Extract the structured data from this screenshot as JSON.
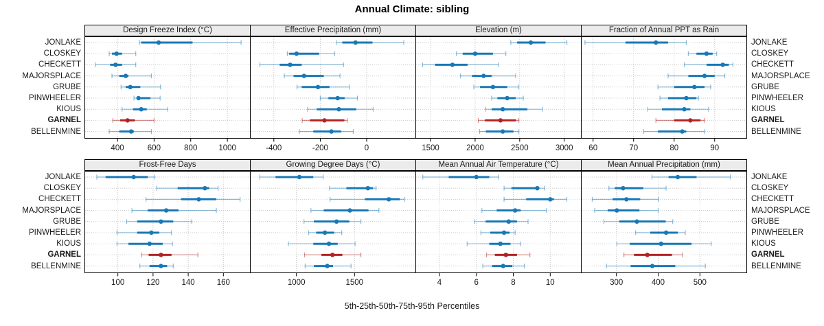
{
  "chart_data": {
    "type": "scatter",
    "subtype": "trellis-percentile-dot-whisker",
    "title": "Annual Climate: sibling",
    "caption": "5th-25th-50th-75th-95th Percentiles",
    "percentiles": [
      "5th",
      "25th",
      "50th",
      "75th",
      "95th"
    ],
    "sites": [
      "JONLAKE",
      "CLOSKEY",
      "CHECKETT",
      "MAJORSPLACE",
      "GRUBE",
      "PINWHEELER",
      "KIOUS",
      "GARNEL",
      "BELLENMINE"
    ],
    "highlight_site": "GARNEL",
    "grid": "dotted",
    "legend": "none",
    "colors": {
      "series": "#1778b7",
      "highlight": "#b22222",
      "strip_bg": "#ebebeb",
      "gridline": "#c9c9c9",
      "border": "#000000",
      "text": "#1a1a1a"
    },
    "panels": [
      {
        "title": "Design Freeze Index (°C)",
        "ticks": [
          400,
          600,
          800,
          1000
        ],
        "xlim": [
          220,
          1127
        ],
        "values": {
          "JONLAKE": [
            520,
            530,
            625,
            810,
            1075
          ],
          "CLOSKEY": [
            355,
            370,
            395,
            425,
            500
          ],
          "CHECKETT": [
            280,
            360,
            390,
            425,
            500
          ],
          "MAJORSPLACE": [
            370,
            410,
            445,
            460,
            585
          ],
          "GRUBE": [
            420,
            445,
            470,
            525,
            635
          ],
          "PINWHEELER": [
            490,
            505,
            515,
            580,
            633
          ],
          "KIOUS": [
            425,
            485,
            530,
            560,
            675
          ],
          "GARNEL": [
            375,
            415,
            455,
            495,
            600
          ],
          "BELLENMINE": [
            355,
            410,
            475,
            490,
            585
          ]
        }
      },
      {
        "title": "Effective Precipitation (mm)",
        "ticks": [
          -400,
          -200,
          0
        ],
        "xlim": [
          -503,
          213
        ],
        "values": {
          "JONLAKE": [
            -130,
            -105,
            -48,
            25,
            160
          ],
          "CLOSKEY": [
            -342,
            -334,
            -302,
            -205,
            -138
          ],
          "CHECKETT": [
            -460,
            -375,
            -330,
            -280,
            -100
          ],
          "MAJORSPLACE": [
            -355,
            -315,
            -270,
            -185,
            -115
          ],
          "GRUBE": [
            -300,
            -280,
            -210,
            -160,
            -75
          ],
          "PINWHEELER": [
            -200,
            -165,
            -125,
            -95,
            -40
          ],
          "KIOUS": [
            -255,
            -215,
            -120,
            -45,
            28
          ],
          "GARNEL": [
            -278,
            -245,
            -182,
            -96,
            -84
          ],
          "BELLENMINE": [
            -290,
            -230,
            -152,
            -110,
            -58
          ]
        }
      },
      {
        "title": "Elevation (m)",
        "ticks": [
          1500,
          2000,
          2500,
          3000
        ],
        "xlim": [
          1330,
          3195
        ],
        "values": {
          "JONLAKE": [
            2400,
            2470,
            2625,
            2790,
            3030
          ],
          "CLOSKEY": [
            1790,
            1860,
            2000,
            2200,
            2345
          ],
          "CHECKETT": [
            1410,
            1550,
            1745,
            1915,
            2265
          ],
          "MAJORSPLACE": [
            1835,
            1965,
            2095,
            2185,
            2455
          ],
          "GRUBE": [
            1985,
            2055,
            2200,
            2360,
            2490
          ],
          "PINWHEELER": [
            2185,
            2250,
            2360,
            2455,
            2540
          ],
          "KIOUS": [
            2115,
            2185,
            2310,
            2585,
            2755
          ],
          "GARNEL": [
            2035,
            2110,
            2285,
            2460,
            2490
          ],
          "BELLENMINE": [
            2050,
            2120,
            2310,
            2430,
            2490
          ]
        }
      },
      {
        "title": "Fraction of Annual PPT as Rain",
        "ticks": [
          60,
          70,
          80,
          90
        ],
        "xlim": [
          57,
          98
        ],
        "values": {
          "JONLAKE": [
            58,
            68,
            75.5,
            78.5,
            83
          ],
          "CLOSKEY": [
            83.5,
            85.5,
            88,
            89.5,
            90.5
          ],
          "CHECKETT": [
            82.5,
            88,
            92,
            93.5,
            94.5
          ],
          "MAJORSPLACE": [
            78.5,
            83.5,
            87.5,
            90,
            92.5
          ],
          "GRUBE": [
            76,
            80,
            85,
            87.5,
            89
          ],
          "PINWHEELER": [
            76.5,
            78.5,
            83,
            85.5,
            86
          ],
          "KIOUS": [
            73.5,
            77,
            82.5,
            84,
            88.5
          ],
          "GARNEL": [
            75.5,
            80,
            84,
            86.5,
            87.5
          ],
          "BELLENMINE": [
            72.5,
            76,
            82,
            83,
            87.5
          ]
        }
      },
      {
        "title": "Frost-Free Days",
        "ticks": [
          100,
          120,
          140,
          160
        ],
        "xlim": [
          81,
          175.5
        ],
        "values": {
          "JONLAKE": [
            88,
            93,
            109,
            117,
            121
          ],
          "CLOSKEY": [
            122,
            134,
            149.5,
            152,
            157
          ],
          "CHECKETT": [
            116,
            136,
            146,
            156,
            169.5
          ],
          "MAJORSPLACE": [
            108,
            117,
            127.5,
            134.5,
            156
          ],
          "GRUBE": [
            105,
            111,
            124.5,
            131.5,
            142
          ],
          "PINWHEELER": [
            99.5,
            111,
            119,
            123.5,
            130.5
          ],
          "KIOUS": [
            99.5,
            106,
            118,
            125.5,
            131
          ],
          "GARNEL": [
            113.5,
            117.5,
            124.5,
            130.5,
            145.5
          ],
          "BELLENMINE": [
            112.5,
            118,
            124.5,
            128,
            131.5
          ]
        }
      },
      {
        "title": "Growing Degree Days (°C)",
        "ticks": [
          1000,
          1500
        ],
        "xlim": [
          600,
          2030
        ],
        "values": {
          "JONLAKE": [
            685,
            820,
            1025,
            1145,
            1230
          ],
          "CLOSKEY": [
            1285,
            1430,
            1615,
            1660,
            1685
          ],
          "CHECKETT": [
            1290,
            1590,
            1795,
            1890,
            1930
          ],
          "MAJORSPLACE": [
            1125,
            1235,
            1460,
            1620,
            1710
          ],
          "GRUBE": [
            1065,
            1150,
            1345,
            1455,
            1555
          ],
          "PINWHEELER": [
            1105,
            1170,
            1245,
            1325,
            1390
          ],
          "KIOUS": [
            930,
            1145,
            1280,
            1355,
            1505
          ],
          "GARNEL": [
            1070,
            1215,
            1310,
            1395,
            1555
          ],
          "BELLENMINE": [
            1075,
            1150,
            1265,
            1315,
            1470
          ]
        }
      },
      {
        "title": "Mean Annual Air Temperature (°C)",
        "ticks": [
          4,
          6,
          8,
          10
        ],
        "xlim": [
          2.7,
          11.7
        ],
        "values": {
          "JONLAKE": [
            3.1,
            4.5,
            6.0,
            6.7,
            7.2
          ],
          "CLOSKEY": [
            7.5,
            7.9,
            9.3,
            9.4,
            9.7
          ],
          "CHECKETT": [
            7.5,
            8.7,
            10.0,
            10.2,
            10.9
          ],
          "MAJORSPLACE": [
            6.3,
            7.1,
            8.1,
            8.4,
            9.8
          ],
          "GRUBE": [
            5.9,
            6.5,
            7.75,
            8.2,
            8.8
          ],
          "PINWHEELER": [
            6.25,
            6.75,
            7.5,
            7.8,
            8.1
          ],
          "KIOUS": [
            5.5,
            6.7,
            7.3,
            7.85,
            8.4
          ],
          "GARNEL": [
            6.55,
            7.0,
            7.6,
            8.2,
            8.9
          ],
          "BELLENMINE": [
            6.35,
            6.85,
            7.45,
            7.95,
            8.6
          ]
        }
      },
      {
        "title": "Mean Annual Precipitation (mm)",
        "ticks": [
          300,
          400,
          500
        ],
        "xlim": [
          215,
          613
        ],
        "values": {
          "JONLAKE": [
            385,
            425,
            447,
            492,
            573
          ],
          "CLOSKEY": [
            282,
            296,
            316,
            364,
            419
          ],
          "CHECKETT": [
            242,
            291,
            324,
            357,
            401
          ],
          "MAJORSPLACE": [
            248,
            279,
            301,
            355,
            400
          ],
          "GRUBE": [
            270,
            307,
            349,
            418,
            435
          ],
          "PINWHEELER": [
            346,
            381,
            419,
            447,
            465
          ],
          "KIOUS": [
            301,
            332,
            407,
            480,
            527
          ],
          "GARNEL": [
            318,
            342,
            374,
            433,
            458
          ],
          "BELLENMINE": [
            276,
            334,
            386,
            441,
            513
          ]
        }
      }
    ]
  }
}
